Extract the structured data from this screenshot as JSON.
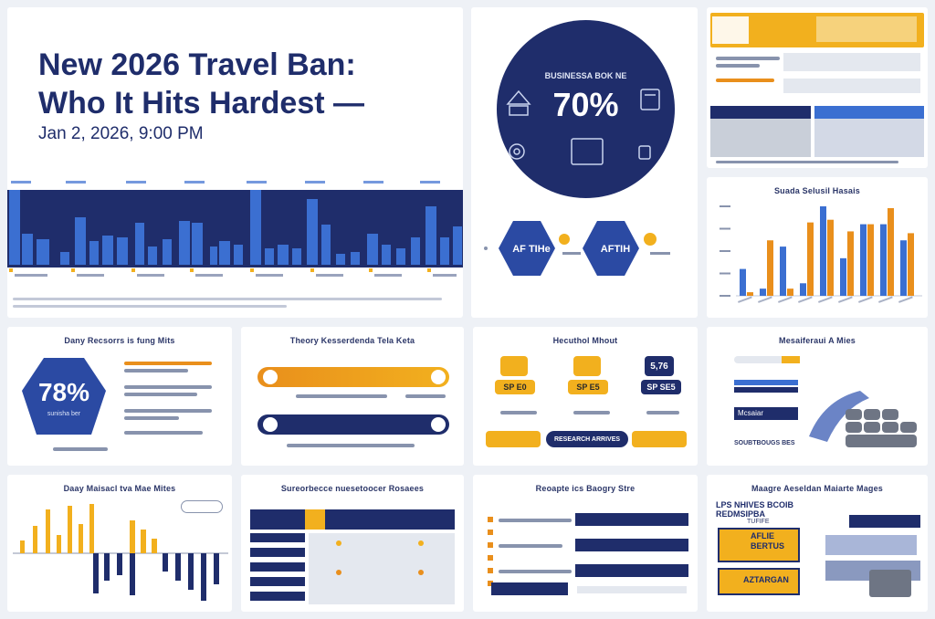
{
  "hero": {
    "title_line1": "New 2026 Travel Ban:",
    "title_line2": "Who It Hits Hardest —",
    "date": "Jan 2, 2026, 9:00 PM"
  },
  "circle": {
    "headline": "BUSINESSA BOK NE",
    "big_percent": "70%"
  },
  "card_78": {
    "title": "Dany Recsorrs is fung Mits",
    "big_percent": "78%",
    "sub": "sunisha ber"
  },
  "card_bars_h": {
    "title": "Theory Kesserdenda Tela Keta"
  },
  "card_process": {
    "title": "Hecuthol Mhout",
    "box3": "5,76",
    "pill1": "SP E0",
    "pill2": "SP E5",
    "pill3": "SP SE5",
    "foot": "RESEARCH ARRIVES"
  },
  "card_stack": {
    "title": "Mesaiferaui A Mies",
    "label": "Mcsaiar",
    "foot": "SOUBTBOUGS BES"
  },
  "card_pm": {
    "title": "Daay Maisacl tva Mae Mites"
  },
  "card_table": {
    "title": "Sureorbecce nuesetoocer Rosaees"
  },
  "card_rows": {
    "title": "Reoapte ics Baogry Stre"
  },
  "card_books": {
    "title": "Maagre Aeseldan Maiarte Mages",
    "heading": "LPS NHIVES BCOIB REDMSIPBA",
    "sub": "TUFIFE",
    "book1": "AFLIE BERTUS",
    "book2": "AZTARGAN"
  },
  "card_grouped": {
    "title": "Suada Selusil Hasais"
  },
  "hex": {
    "label1": "AF TIHe",
    "label2": "AFTIH"
  },
  "chart_data": {
    "type": "bar",
    "title": "Suada Selusil Hasais",
    "series": [
      {
        "color": "#3b6fd1",
        "values": [
          30,
          8,
          55,
          14,
          100,
          42,
          80,
          80,
          62
        ]
      },
      {
        "color": "#e98f1c",
        "values": [
          4,
          62,
          8,
          82,
          85,
          72,
          80,
          98,
          70
        ]
      }
    ],
    "categories": [
      "",
      "",
      "",
      "",
      "",
      "",
      "",
      "",
      ""
    ],
    "ylim": [
      0,
      100
    ]
  },
  "colors": {
    "navy": "#1f2d6b",
    "blue": "#3b6fd1",
    "gold": "#f2b01e",
    "orange": "#e98f1c"
  }
}
